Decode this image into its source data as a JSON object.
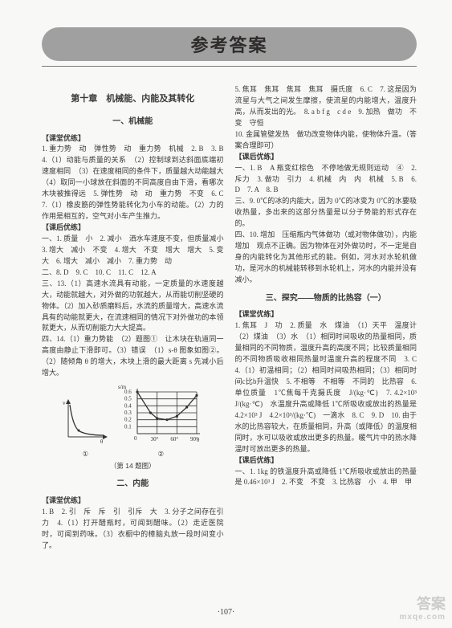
{
  "title": "参考答案",
  "page_number": "·107·",
  "watermark": {
    "big": "答案",
    "small": "mxqe.com"
  },
  "left": {
    "chapter": "第十章　机械能、内能及其转化",
    "sec1": "一、机械能",
    "ket1_label": "【课堂优练】",
    "ket1_body": "1. 重力势　动　弹性势　动　重力势　机械　2. B　3. B　4.（1）动能与质量的关系　（2）控制球到达斜面底端初速度相同　（3）在速度相同的条件下，质量越大动能越大　（4）取同一小球放在斜面的不同高度自由下滑，看哪次木块被推得远　5. 弹性势　动　动　重力势　不变　6. C　7.（1）橡皮筋的弹性势能转化为小车的动能。（2）力的作用是相互的，空气对小车产生推力。",
    "kh1_label": "【课后优练】",
    "kh1_l1": "一、1. 质量　小　2. 减小　洒水车速度不变，但质量减小　3. 增大　减小　不变　4. 增大　不变　增大　增大　5. 变大　6. 增大　减小　减小　7. 重力势　动",
    "kh1_l2": "二、8. D　9. C　10. C　11. C　12. A",
    "kh1_l3": "三、13.（1）高速水流具有动能，一定质量的水速度越大，动能就越大，对外做的功就越大，从而能切削坚硬的物体。（2）加入砂质磨料后，水流的质量增大，高速水流具有的动能就更大，在流速相同的情况下对外做功的本领就更大，从而切削能力大大提高。",
    "kh1_l4": "四、14.（1）重力势能　（2）题图①　让木块在轨道同一高度由静止下滑即可。（3）错误　（1）s-θ 图象如图②。（2）随倾角 θ 的增大，木块上滑的最大距离 s 先减小后增大。",
    "fig_caption": "（第 14 题图）",
    "fig1_id": "①",
    "fig2_id": "②",
    "fig2": {
      "ylabel": "s/m",
      "xlabel": "θ",
      "yticks": [
        "0.1",
        "0.2",
        "0.3",
        "0.4",
        "0.5",
        "0.6"
      ],
      "xticks": [
        "30°",
        "60°",
        "90°"
      ],
      "points": [
        [
          0,
          0.6
        ],
        [
          20,
          0.3
        ],
        [
          30,
          0.22
        ],
        [
          45,
          0.2
        ],
        [
          60,
          0.25
        ],
        [
          75,
          0.38
        ],
        [
          90,
          0.55
        ]
      ]
    },
    "sec2": "二、内能",
    "ket2_label": "【课堂优练】",
    "ket2_body": "1. B　2. 引　斥　斥　引　引斥　大　3. 分子之间存在引力　4.（1）打开醋瓶时，可闻到醋味。（2）走近医院时，可闻到药味。（3）衣橱中的樟脑丸放一段时间变小了。"
  },
  "right": {
    "top": "5. 焦耳　焦耳　焦耳　焦耳　摄氏度　6. C　7. 这是因为流星与大气之间发生摩擦，使流星的内能增大，温度升高，从而发出的光。　8. a b f g　c d e　9. 加热　做功　不变　守恒",
    "top2": "10. 金属管壁发热　做功改变物体内能，使物体升温。（答案合理即可）",
    "kh2_label": "【课后优练】",
    "kh2_l1": "一、1. B　A 瓶变红棕色　不停地做无规则运动　④　2. 斥力　3. 做功　引力　4. 机械　内　内　机械　5. B　6. D　7. A　8. B",
    "kh2_l2": "三、9. 0℃的冰的内能大，因为 0℃的冰变为 0℃的水要吸收热量，多出来的这部分热量是以分子势能的形式存在的。",
    "kh2_l3": "四、10. 增加　压缩瓶内气体做功（或对物体做功），内能增加　观点不正确。因为物体在对外做功时，不一定是自身的内能转化为其他形式的能。例如，河水对水轮机做功，是河水的机械能转移到水轮机上，河水的内能并没有减小。",
    "sec3": "三、探究——物质的比热容（一）",
    "ket3_label": "【课堂优练】",
    "ket3_body": "1. 焦耳　J　功　2. 质量　水　煤油　（1）天平　温度计　（2）煤油　（3）水　（1）相同时间吸收的热量相同，质量相同的不同物质，温度升高的高度不同；比较质量相同的不同物质吸收相同热量时温度升高的程度不同　3. C　4.（1）初温相同；（2）相同时间吸热相同；（3）相同时间c比b升温快　5. 不相等　不相等　不同的　比热容　6. 单位质量　1℃焦每千克摄氏度　J/(kg·℃)　7. 4.2×10³ J/(kg·℃)　水温度升高或降低 1℃所吸收或放出的热量是 4.2×10³ J　4.2×10³/(kg·℃)　一滴水　8. C　9. D　10. 由于水的比热容较大，在质量相同，升高（或降低）的温度相同时，水可以吸收或放出更多的热量。暖气片中的热水降温时可放出更多的热量。",
    "kh3_label": "【课后优练】",
    "kh3_l1": "一、1. 1kg 的铁温度升高或降低 1℃所吸收或放出的热量是 0.46×10³ J　2. 不变　不变　3. 比热容　小　4. 甲　甲"
  }
}
